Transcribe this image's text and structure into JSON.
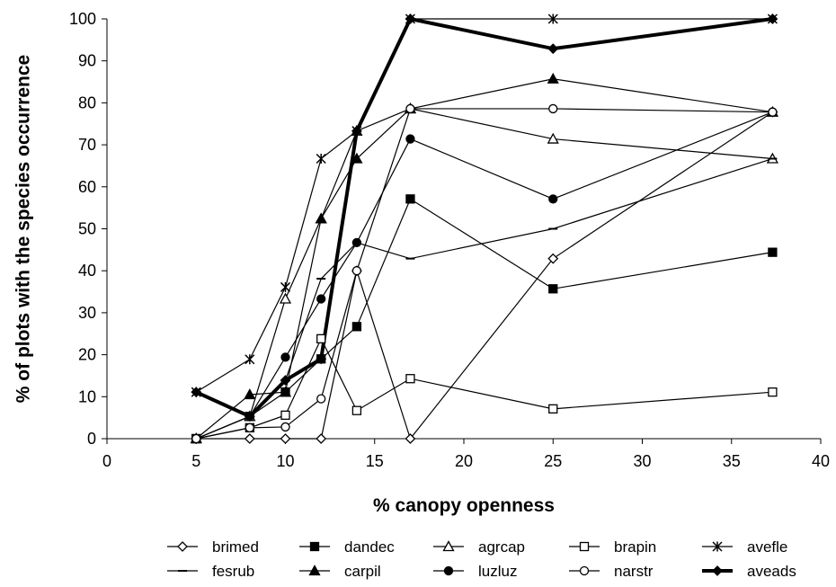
{
  "chart_data": {
    "type": "line",
    "title": "",
    "xlabel": "% canopy openness",
    "ylabel": "% of plots with the species occurrence",
    "xlim": [
      0,
      40
    ],
    "ylim": [
      0,
      100
    ],
    "xticks": [
      0,
      5,
      10,
      15,
      20,
      25,
      30,
      35,
      40
    ],
    "yticks": [
      0,
      10,
      20,
      30,
      40,
      50,
      60,
      70,
      80,
      90,
      100
    ],
    "x": [
      5,
      8,
      10,
      12,
      14,
      17,
      25,
      37.3
    ],
    "grid": false,
    "legend_position": "bottom",
    "series": [
      {
        "name": "brimed",
        "marker": "diamond-open",
        "values": [
          0,
          0,
          0,
          0,
          40,
          0,
          42.9,
          77.8
        ]
      },
      {
        "name": "dandec",
        "marker": "square-filled",
        "values": [
          0,
          5.3,
          11.1,
          19,
          26.7,
          57.1,
          35.7,
          44.4
        ]
      },
      {
        "name": "agrcap",
        "marker": "triangle-open",
        "values": [
          0,
          5.3,
          33.3,
          52.4,
          73.3,
          78.6,
          71.4,
          66.7
        ]
      },
      {
        "name": "brapin",
        "marker": "square-open",
        "values": [
          0,
          2.6,
          5.6,
          23.8,
          6.7,
          14.3,
          7.1,
          11.1
        ]
      },
      {
        "name": "avefle",
        "marker": "asterisk",
        "values": [
          11.1,
          18.9,
          36.1,
          66.7,
          73.3,
          100,
          100,
          100
        ]
      },
      {
        "name": "fesrub",
        "marker": "dash",
        "values": [
          0,
          5.3,
          13.9,
          38.1,
          46.7,
          42.9,
          50,
          66.7
        ]
      },
      {
        "name": "carpil",
        "marker": "triangle-filled",
        "values": [
          0,
          10.5,
          11.1,
          52.4,
          66.7,
          78.6,
          85.7,
          77.8
        ]
      },
      {
        "name": "luzluz",
        "marker": "circle-filled",
        "values": [
          0,
          5.3,
          19.4,
          33.3,
          46.7,
          71.4,
          57.1,
          77.8
        ]
      },
      {
        "name": "narstr",
        "marker": "circle-open",
        "values": [
          0,
          2.6,
          2.8,
          9.5,
          40,
          78.6,
          78.6,
          77.8
        ]
      },
      {
        "name": "aveads",
        "marker": "diamond-filled",
        "thick": true,
        "values": [
          11.1,
          5.3,
          13.9,
          19,
          73.3,
          100,
          92.9,
          100
        ]
      }
    ]
  }
}
